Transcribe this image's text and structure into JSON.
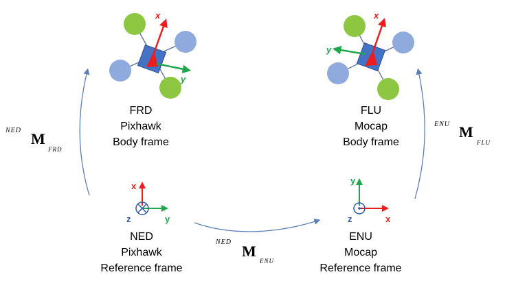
{
  "colors": {
    "prop_green": "#8dc641",
    "prop_blue": "#8faadc",
    "arm": "#5a6e9a",
    "body": "#4472c4",
    "body_edge": "#2f4f8f",
    "arrow_red": "#ee1c1c",
    "axis_green": "#1ea84c",
    "flow_arrow": "#5b7fb8",
    "axis_blue": "#2e5aa6"
  },
  "frames": {
    "frd": {
      "line1": "FRD",
      "line2": "Pixhawk",
      "line3": "Body frame",
      "x_label": "x",
      "y_label": "y"
    },
    "flu": {
      "line1": "FLU",
      "line2": "Mocap",
      "line3": "Body frame",
      "x_label": "x",
      "y_label": "y"
    },
    "ned": {
      "line1": "NED",
      "line2": "Pixhawk",
      "line3": "Reference frame",
      "x_label": "x",
      "y_label": "y",
      "z_label": "z"
    },
    "enu": {
      "line1": "ENU",
      "line2": "Mocap",
      "line3": "Reference frame",
      "x_label": "x",
      "y_label": "y",
      "z_label": "z"
    }
  },
  "transforms": {
    "ned_frd": {
      "superscript": "NED",
      "symbol": "M",
      "subscript": "FRD"
    },
    "enu_flu": {
      "superscript": "ENU",
      "symbol": "M",
      "subscript": "FLU"
    },
    "ned_enu": {
      "superscript": "NED",
      "symbol": "M",
      "subscript": "ENU"
    }
  }
}
